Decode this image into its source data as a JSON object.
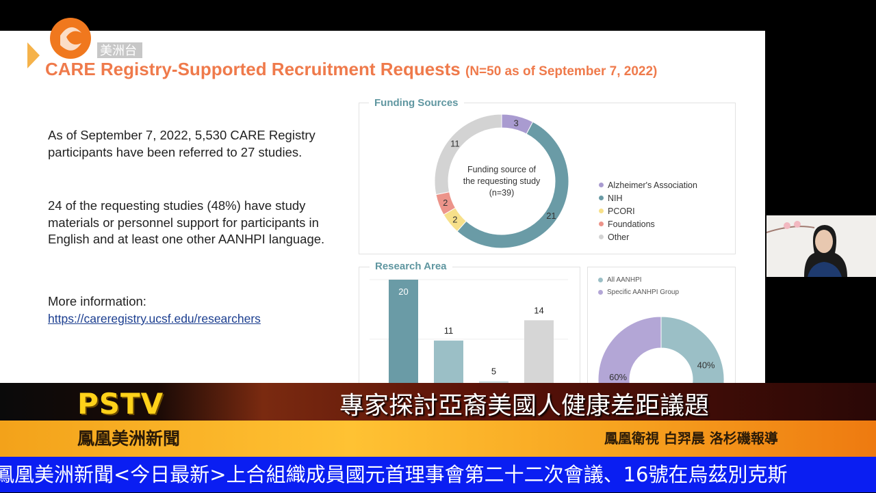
{
  "broadcast": {
    "logo_text": "美洲台",
    "brand": "PSTV",
    "program": "鳳凰美洲新聞",
    "headline": "專家探討亞裔美國人健康差距議題",
    "credit": "鳳凰衛視 白羿晨 洛杉磯報導",
    "ticker": "鳳凰美洲新聞<今日最新>上合組織成員國元首理事會第二十二次會議、16號在烏茲別克斯"
  },
  "slide": {
    "title": "CARE Registry-Supported Recruitment Requests",
    "title_note": "(N=50 as of September 7, 2022)",
    "para1": "As of September 7, 2022, 5,530 CARE Registry participants have been referred to 27 studies.",
    "para2": "24 of the requesting studies (48%) have study materials or personnel support for participants in English and at least one other AANHPI language.",
    "more_label": "More information:",
    "link": "https://careregistry.ucsf.edu/researchers"
  },
  "chart_data": [
    {
      "type": "pie",
      "title": "Funding Sources",
      "center_label": [
        "Funding source of",
        "the requesting study",
        "(n=39)"
      ],
      "slices": [
        {
          "name": "Alzheimer's Association",
          "value": 3,
          "color": "#a99bd0"
        },
        {
          "name": "NIH",
          "value": 21,
          "color": "#6a9ba6"
        },
        {
          "name": "PCORI",
          "value": 2,
          "color": "#f7e08a"
        },
        {
          "name": "Foundations",
          "value": 2,
          "color": "#ec948a"
        },
        {
          "name": "Other",
          "value": 11,
          "color": "#d3d3d3"
        }
      ],
      "legend": "right"
    },
    {
      "type": "bar",
      "title": "Research Area",
      "values": [
        20,
        11,
        5,
        14
      ],
      "colors": [
        "#6a9ba6",
        "#9bbfc6",
        "#c9dde0",
        "#d6d6d6"
      ],
      "ylim": [
        0,
        20
      ],
      "grid": true
    },
    {
      "type": "pie",
      "slices": [
        {
          "name": "All AANHPI",
          "value": 40,
          "label": "40%",
          "color": "#9bbfc6"
        },
        {
          "name": "Specific AANHPI Group",
          "value": 60,
          "label": "60%",
          "color": "#b3a6d6"
        }
      ],
      "legend": "top-left"
    }
  ]
}
